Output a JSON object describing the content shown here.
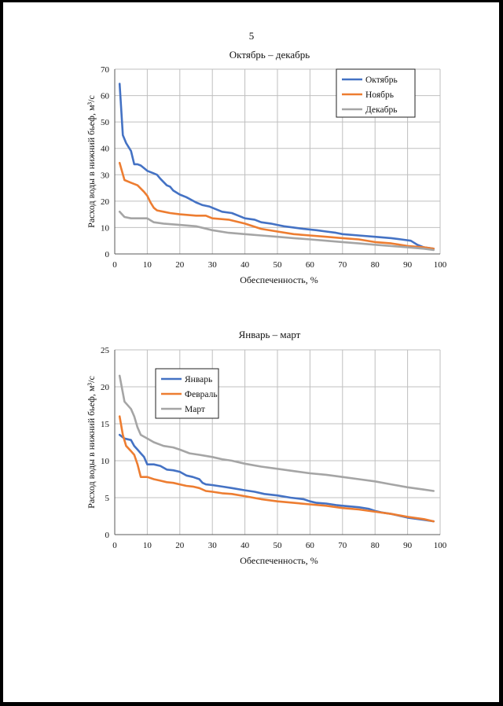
{
  "page": {
    "number": "5"
  },
  "chart_data": [
    {
      "type": "line",
      "title": "Октябрь – декабрь",
      "xlabel": "Обеспеченность, %",
      "ylabel": "Расход воды в нижний бьеф, м³/с",
      "xlim": [
        0,
        100
      ],
      "ylim": [
        0,
        70
      ],
      "xticks": [
        0,
        10,
        20,
        30,
        40,
        50,
        60,
        70,
        80,
        90,
        100
      ],
      "yticks": [
        0,
        10,
        20,
        30,
        40,
        50,
        60,
        70
      ],
      "grid": true,
      "legend_position": "top-right",
      "series": [
        {
          "name": "Октябрь",
          "color": "#4472C4",
          "x": [
            1.5,
            2.5,
            3.5,
            5,
            6,
            7,
            8,
            9,
            10,
            12,
            13,
            14,
            16,
            17,
            18,
            20,
            22,
            25,
            27,
            29,
            31,
            33,
            36,
            38,
            40,
            43,
            45,
            48,
            50,
            52,
            55,
            58,
            62,
            65,
            68,
            70,
            75,
            80,
            85,
            88,
            91,
            93,
            95,
            98
          ],
          "y": [
            64.5,
            45,
            42,
            39,
            34,
            34,
            33.5,
            32.5,
            31.5,
            30.5,
            30,
            28.5,
            26,
            25.5,
            24,
            22.5,
            21.5,
            19.5,
            18.5,
            18,
            17,
            16,
            15.5,
            14.5,
            13.5,
            13,
            12,
            11.5,
            11,
            10.5,
            10,
            9.5,
            9,
            8.5,
            8,
            7.5,
            7,
            6.5,
            6,
            5.5,
            5,
            3.5,
            2.5,
            2
          ]
        },
        {
          "name": "Ноябрь",
          "color": "#ED7D31",
          "x": [
            1.5,
            3,
            5,
            7,
            9,
            10,
            11,
            12,
            13,
            15,
            17,
            20,
            25,
            28,
            30,
            35,
            40,
            45,
            50,
            55,
            60,
            65,
            70,
            75,
            80,
            85,
            90,
            95,
            98
          ],
          "y": [
            34.5,
            28,
            27,
            26,
            23.5,
            22,
            19.5,
            17.5,
            16.5,
            16,
            15.5,
            15,
            14.5,
            14.5,
            13.5,
            13,
            11.5,
            9.5,
            8.5,
            7.5,
            7,
            6.5,
            6,
            5.5,
            4.5,
            4,
            3,
            2.5,
            2
          ]
        },
        {
          "name": "Декабрь",
          "color": "#A5A5A5",
          "x": [
            1.5,
            3,
            5,
            7,
            10,
            12,
            15,
            20,
            25,
            30,
            35,
            40,
            45,
            50,
            55,
            60,
            65,
            70,
            75,
            80,
            85,
            90,
            95,
            98
          ],
          "y": [
            16,
            14,
            13.5,
            13.5,
            13.5,
            12,
            11.5,
            11,
            10.5,
            9,
            8,
            7.5,
            7,
            6.5,
            6,
            5.5,
            5,
            4.5,
            4,
            3.5,
            3,
            2.5,
            2,
            1.5
          ]
        }
      ]
    },
    {
      "type": "line",
      "title": "Январь – март",
      "xlabel": "Обеспеченность, %",
      "ylabel": "Расход воды в нижний бьеф, м³/с",
      "xlim": [
        0,
        100
      ],
      "ylim": [
        0,
        25
      ],
      "xticks": [
        0,
        10,
        20,
        30,
        40,
        50,
        60,
        70,
        80,
        90,
        100
      ],
      "yticks": [
        0,
        5,
        10,
        15,
        20,
        25
      ],
      "grid": true,
      "legend_position": "top-left",
      "series": [
        {
          "name": "Январь",
          "color": "#4472C4",
          "x": [
            1.5,
            3,
            5,
            6,
            7,
            8,
            9,
            10,
            12,
            14,
            16,
            18,
            20,
            22,
            24,
            26,
            27,
            28,
            30,
            33,
            36,
            40,
            43,
            46,
            50,
            54,
            58,
            60,
            62,
            65,
            68,
            70,
            75,
            78,
            80,
            82,
            85,
            88,
            90,
            95,
            98
          ],
          "y": [
            13.5,
            13,
            12.8,
            12,
            11.5,
            11,
            10.5,
            9.5,
            9.5,
            9.3,
            8.8,
            8.7,
            8.5,
            8,
            7.8,
            7.5,
            7,
            6.8,
            6.7,
            6.5,
            6.3,
            6,
            5.8,
            5.5,
            5.3,
            5,
            4.8,
            4.5,
            4.3,
            4.2,
            4,
            3.9,
            3.7,
            3.5,
            3.2,
            3,
            2.8,
            2.5,
            2.3,
            2,
            1.8
          ]
        },
        {
          "name": "Февраль",
          "color": "#ED7D31",
          "x": [
            1.5,
            2.5,
            3.5,
            5,
            6,
            7,
            8,
            9,
            10,
            12,
            14,
            16,
            18,
            20,
            22,
            24,
            26,
            28,
            30,
            33,
            36,
            40,
            45,
            50,
            55,
            60,
            65,
            70,
            75,
            80,
            85,
            90,
            95,
            98
          ],
          "y": [
            16,
            13.5,
            12,
            11.3,
            10.8,
            9.5,
            7.8,
            7.8,
            7.8,
            7.5,
            7.3,
            7.1,
            7,
            6.8,
            6.6,
            6.5,
            6.3,
            5.9,
            5.8,
            5.6,
            5.5,
            5.2,
            4.8,
            4.5,
            4.3,
            4.1,
            3.9,
            3.6,
            3.4,
            3.1,
            2.8,
            2.4,
            2.1,
            1.8
          ]
        },
        {
          "name": "Март",
          "color": "#A5A5A5",
          "x": [
            1.5,
            3,
            5,
            6,
            7,
            8,
            10,
            12,
            15,
            18,
            20,
            23,
            26,
            30,
            33,
            36,
            40,
            45,
            50,
            55,
            60,
            65,
            70,
            75,
            80,
            85,
            90,
            95,
            98
          ],
          "y": [
            21.5,
            18,
            17,
            16,
            14.5,
            13.5,
            13,
            12.5,
            12,
            11.8,
            11.5,
            11,
            10.8,
            10.5,
            10.2,
            10,
            9.6,
            9.2,
            8.9,
            8.6,
            8.3,
            8.1,
            7.8,
            7.5,
            7.2,
            6.8,
            6.4,
            6.1,
            5.9
          ]
        }
      ]
    }
  ]
}
